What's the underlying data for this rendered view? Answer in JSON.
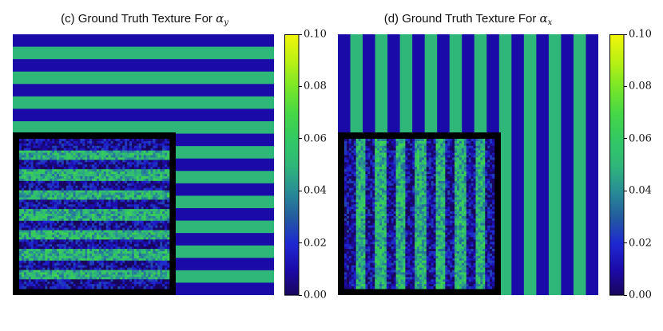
{
  "chart_data": [
    {
      "type": "heatmap",
      "title_prefix": "(c) Ground Truth Texture For",
      "title_symbol": "α",
      "title_subscript": "y",
      "pattern": "horizontal-stripes",
      "stripe_count": 21,
      "stripe_values": [
        0.01,
        0.05
      ],
      "inset": "noisy-reconstruction",
      "inset_stripe_count": 15,
      "colorbar": {
        "colormap": "viridis",
        "range": [
          0.0,
          0.1
        ],
        "ticks": [
          "0.00",
          "0.02",
          "0.04",
          "0.06",
          "0.08",
          "0.10"
        ]
      }
    },
    {
      "type": "heatmap",
      "title_prefix": "(d) Ground Truth Texture For",
      "title_symbol": "α",
      "title_subscript": "x",
      "pattern": "vertical-stripes",
      "stripe_count": 21,
      "stripe_values": [
        0.01,
        0.05
      ],
      "inset": "noisy-reconstruction",
      "inset_stripe_count": 15,
      "colorbar": {
        "colormap": "viridis",
        "range": [
          0.0,
          0.1
        ],
        "ticks": [
          "0.00",
          "0.02",
          "0.04",
          "0.06",
          "0.08",
          "0.10"
        ]
      }
    }
  ],
  "colors": {
    "low_stripe": "#1a0aa8",
    "high_stripe": "#2fb77a",
    "frame": "#000000"
  }
}
